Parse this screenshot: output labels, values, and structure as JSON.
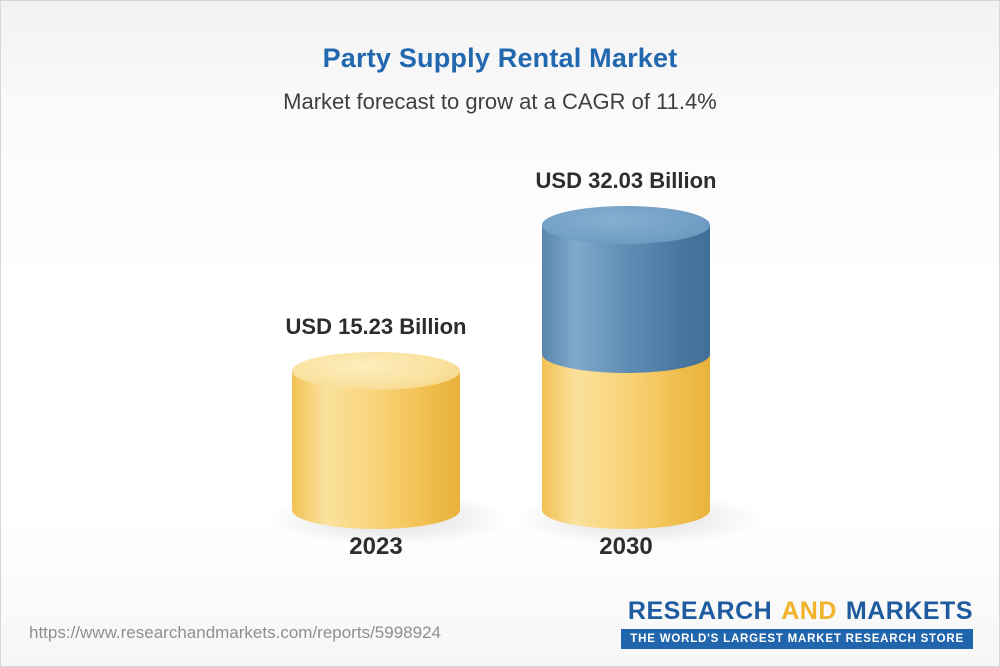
{
  "header": {
    "title": "Party Supply Rental Market",
    "subtitle": "Market forecast to grow at a CAGR of 11.4%"
  },
  "chart_data": {
    "type": "bar",
    "title": "Party Supply Rental Market",
    "subtitle": "Market forecast to grow at a CAGR of 11.4%",
    "cagr_percent": 11.4,
    "categories": [
      "2023",
      "2030"
    ],
    "values": [
      15.23,
      32.03
    ],
    "unit": "USD Billion",
    "value_labels": [
      "USD 15.23 Billion",
      "USD 32.03 Billion"
    ],
    "legend_position": "none",
    "grid": false,
    "ylim": [
      0,
      34
    ],
    "colors": {
      "bar_2023": "#F6CD67",
      "bar_2030_lower": "#F6CD67",
      "bar_2030_upper": "#4E80AA",
      "title": "#2268AE",
      "text": "#2D2D2D"
    }
  },
  "footer": {
    "url": "https://www.researchandmarkets.com/reports/5998924",
    "logo": {
      "word1": "RESEARCH",
      "word2": "AND",
      "word3": "MARKETS",
      "tagline": "THE WORLD'S LARGEST MARKET RESEARCH STORE",
      "navy": "#1E5C9F",
      "gold": "#F0B32B"
    }
  }
}
